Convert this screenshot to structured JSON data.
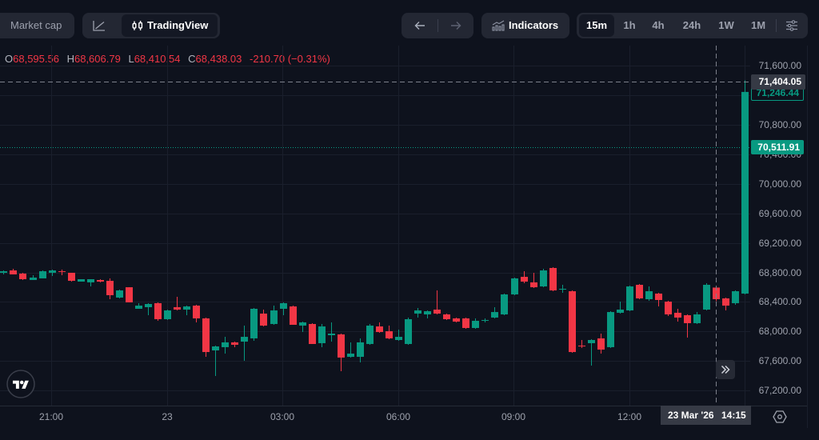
{
  "toolbar": {
    "market_cap_label": "Market cap",
    "chart_toggle": {
      "line_icon": "line-chart-icon",
      "tradingview_icon": "candlestick-icon",
      "tradingview_label": "TradingView",
      "active": "TradingView"
    },
    "nav": {
      "back_icon": "arrow-left-icon",
      "forward_icon": "arrow-right-icon"
    },
    "indicators": {
      "icon": "indicators-icon",
      "label": "Indicators"
    },
    "timeframes": [
      {
        "label": "15m",
        "active": true
      },
      {
        "label": "1h",
        "active": false
      },
      {
        "label": "4h",
        "active": false
      },
      {
        "label": "24h",
        "active": false
      },
      {
        "label": "1W",
        "active": false
      },
      {
        "label": "1M",
        "active": false
      }
    ],
    "settings_icon": "sliders-icon"
  },
  "legend": {
    "o_label": "O",
    "o": "68,595.56",
    "h_label": "H",
    "h": "68,606.79",
    "l_label": "L",
    "l": "68,410.54",
    "c_label": "C",
    "c": "68,438.03",
    "change": "-210.70 (−0.31%)"
  },
  "price_axis": {
    "ticks": [
      "71,600.00",
      "71,200.00",
      "70,800.00",
      "70,400.00",
      "70,000.00",
      "69,600.00",
      "69,200.00",
      "68,800.00",
      "68,400.00",
      "68,000.00",
      "67,600.00",
      "67,200.00"
    ],
    "crosshair_price": "71,404.05",
    "last_close": "71,246.44",
    "current_price": "70,511.91"
  },
  "time_axis": {
    "labels": [
      "21:00",
      "23",
      "03:00",
      "06:00",
      "09:00",
      "12:00"
    ],
    "crosshair_date": "23 Mar '26",
    "crosshair_time": "14:15"
  },
  "controls": {
    "scroll_right_icon": "double-chevron-right-icon",
    "scale_settings_icon": "hexagon-settings-icon",
    "logo": "tradingview-logo"
  },
  "colors": {
    "up": "#089981",
    "down": "#f23645",
    "background": "#0e121d",
    "crosshair_label_bg": "#363a45"
  },
  "chart_data": {
    "type": "candlestick",
    "title": "",
    "interval": "15m",
    "xlabel": "",
    "ylabel": "",
    "ylim": [
      67000,
      71870
    ],
    "y_ticks": [
      71600,
      71200,
      70800,
      70400,
      70000,
      69600,
      69200,
      68800,
      68400,
      68000,
      67600,
      67200
    ],
    "x_tick_labels": [
      "21:00",
      "23",
      "03:00",
      "06:00",
      "09:00",
      "12:00"
    ],
    "grid": true,
    "colors": {
      "up": "#089981",
      "down": "#f23645"
    },
    "crosshair": {
      "time": "23 Mar '26 14:15",
      "price": 71404.05
    },
    "last_close": 71246.44,
    "current_price_line": 70511.91,
    "x": [
      "19:45",
      "20:00",
      "20:15",
      "20:30",
      "20:45",
      "21:00",
      "21:15",
      "21:30",
      "21:45",
      "22:00",
      "22:15",
      "22:30",
      "22:45",
      "23:00",
      "23:15",
      "23:30",
      "23:45",
      "00:00",
      "00:15",
      "00:30",
      "00:45",
      "01:00",
      "01:15",
      "01:30",
      "01:45",
      "02:00",
      "02:15",
      "02:30",
      "02:45",
      "03:00",
      "03:15",
      "03:30",
      "03:45",
      "04:00",
      "04:15",
      "04:30",
      "04:45",
      "05:00",
      "05:15",
      "05:30",
      "05:45",
      "06:00",
      "06:15",
      "06:30",
      "06:45",
      "07:00",
      "07:15",
      "07:30",
      "07:45",
      "08:00",
      "08:15",
      "08:30",
      "08:45",
      "09:00",
      "09:15",
      "09:30",
      "09:45",
      "10:00",
      "10:15",
      "10:30",
      "10:45",
      "11:00",
      "11:15",
      "11:30",
      "11:45",
      "12:00",
      "12:15",
      "12:30",
      "12:45",
      "13:00",
      "13:15",
      "13:30",
      "13:45",
      "14:00",
      "14:15",
      "14:30",
      "14:45",
      "15:00"
    ],
    "ohlc_fields": [
      "open",
      "high",
      "low",
      "close"
    ],
    "ohlc": [
      [
        68796,
        68828,
        68774,
        68817
      ],
      [
        68828,
        68850,
        68774,
        68774
      ],
      [
        68785,
        68796,
        68698,
        68709
      ],
      [
        68698,
        68763,
        68698,
        68731
      ],
      [
        68720,
        68828,
        68720,
        68817
      ],
      [
        68796,
        68839,
        68752,
        68828
      ],
      [
        68817,
        68839,
        68763,
        68807
      ],
      [
        68796,
        68796,
        68676,
        68687
      ],
      [
        68676,
        68709,
        68676,
        68709
      ],
      [
        68666,
        68709,
        68611,
        68709
      ],
      [
        68698,
        68709,
        68666,
        68676
      ],
      [
        68687,
        68720,
        68438,
        68492
      ],
      [
        68460,
        68568,
        68449,
        68557
      ],
      [
        68600,
        68600,
        68395,
        68395
      ],
      [
        68308,
        68384,
        68308,
        68351
      ],
      [
        68330,
        68384,
        68221,
        68373
      ],
      [
        68384,
        68395,
        68145,
        68167
      ],
      [
        68167,
        68297,
        68156,
        68286
      ],
      [
        68330,
        68470,
        68286,
        68297
      ],
      [
        68297,
        68351,
        68221,
        68340
      ],
      [
        68351,
        68362,
        68124,
        68178
      ],
      [
        68178,
        68189,
        67657,
        67722
      ],
      [
        67744,
        67809,
        67397,
        67798
      ],
      [
        67788,
        67928,
        67701,
        67853
      ],
      [
        67853,
        67863,
        67788,
        67820
      ],
      [
        67863,
        68080,
        67603,
        67928
      ],
      [
        67907,
        68319,
        67874,
        68308
      ],
      [
        68243,
        68297,
        68069,
        68080
      ],
      [
        68102,
        68351,
        68091,
        68286
      ],
      [
        68308,
        68395,
        68221,
        68384
      ],
      [
        68340,
        68351,
        68091,
        68091
      ],
      [
        68080,
        68134,
        67993,
        68124
      ],
      [
        68102,
        68113,
        67831,
        67831
      ],
      [
        67842,
        68102,
        67788,
        68069
      ],
      [
        67950,
        68124,
        67863,
        67972
      ],
      [
        67961,
        67972,
        67462,
        67647
      ],
      [
        67657,
        67853,
        67647,
        67701
      ],
      [
        67657,
        67907,
        67582,
        67853
      ],
      [
        67831,
        68102,
        67820,
        68080
      ],
      [
        68069,
        68124,
        67982,
        67993
      ],
      [
        68004,
        68080,
        67896,
        67907
      ],
      [
        67885,
        68026,
        67874,
        67928
      ],
      [
        67831,
        68189,
        67820,
        68167
      ],
      [
        68243,
        68319,
        68189,
        68286
      ],
      [
        68232,
        68286,
        68178,
        68275
      ],
      [
        68297,
        68557,
        68232,
        68243
      ],
      [
        68232,
        68243,
        68156,
        68167
      ],
      [
        68178,
        68189,
        68124,
        68134
      ],
      [
        68178,
        68189,
        68037,
        68048
      ],
      [
        68048,
        68178,
        68037,
        68145
      ],
      [
        68145,
        68178,
        68124,
        68156
      ],
      [
        68189,
        68330,
        68178,
        68264
      ],
      [
        68232,
        68514,
        68221,
        68503
      ],
      [
        68503,
        68731,
        68492,
        68720
      ],
      [
        68741,
        68817,
        68655,
        68676
      ],
      [
        68666,
        68796,
        68590,
        68600
      ],
      [
        68611,
        68850,
        68600,
        68828
      ],
      [
        68861,
        68872,
        68546,
        68557
      ],
      [
        68568,
        68633,
        68525,
        68579
      ],
      [
        68546,
        68557,
        67711,
        67722
      ],
      [
        67809,
        67885,
        67777,
        67798
      ],
      [
        67842,
        67896,
        67538,
        67885
      ],
      [
        67907,
        67972,
        67701,
        67755
      ],
      [
        67788,
        68275,
        67777,
        68264
      ],
      [
        68254,
        68405,
        68243,
        68297
      ],
      [
        68286,
        68622,
        68275,
        68611
      ],
      [
        68633,
        68644,
        68438,
        68449
      ],
      [
        68438,
        68611,
        68416,
        68546
      ],
      [
        68514,
        68525,
        68340,
        68427
      ],
      [
        68405,
        68416,
        68210,
        68232
      ],
      [
        68254,
        68308,
        68134,
        68189
      ],
      [
        68221,
        68232,
        67918,
        68113
      ],
      [
        68113,
        68264,
        68102,
        68232
      ],
      [
        68297,
        68655,
        68286,
        68633
      ],
      [
        68595.56,
        68606.79,
        68410.54,
        68438.03
      ],
      [
        68449,
        68460,
        68286,
        68351
      ],
      [
        68384,
        68557,
        68362,
        68546
      ],
      [
        68514,
        71404,
        68503,
        71246.44
      ]
    ]
  }
}
